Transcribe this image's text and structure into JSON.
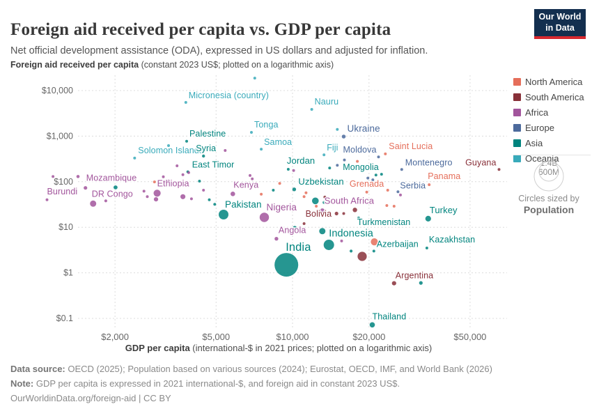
{
  "header": {
    "title": "Foreign aid received per capita vs. GDP per capita",
    "subtitle": "Net official development assistance (ODA), expressed in US dollars and adjusted for inflation.",
    "logo_line1": "Our World",
    "logo_line2": "in Data"
  },
  "axes": {
    "y_title_bold": "Foreign aid received per capita",
    "y_title_rest": " (constant 2023 US$; plotted on a logarithmic axis)",
    "x_title_bold": "GDP per capita",
    "x_title_rest": " (international-$ in 2021 prices; plotted on a logarithmic axis)"
  },
  "legend": {
    "continents": [
      "North America",
      "South America",
      "Africa",
      "Europe",
      "Asia",
      "Oceania"
    ],
    "size_legend": {
      "big_label": "1.4B",
      "small_label": "600M",
      "caption": "Circles sized by",
      "caption_bold": "Population"
    }
  },
  "footer": {
    "line1_bold": "Data source:",
    "line1_rest": " OECD (2025); Population based on various sources (2024); Eurostat, OECD, IMF, and World Bank (2026)",
    "line2_bold": "Note:",
    "line2_rest": " GDP per capita is expressed in 2021 international-$, and foreign aid in constant 2023 US$.",
    "line3": "OurWorldinData.org/foreign-aid | CC BY"
  },
  "chart_data": {
    "type": "scatter",
    "title": "Foreign aid received per capita vs. GDP per capita",
    "xlabel": "GDP per capita (international-$ in 2021 prices; logarithmic)",
    "ylabel": "Foreign aid received per capita (constant 2023 US$; logarithmic)",
    "xlim": [
      1430,
      69900
    ],
    "ylim": [
      0.0633,
      21700
    ],
    "x_ticks": [
      {
        "label": "$2,000",
        "value": 2000
      },
      {
        "label": "$5,000",
        "value": 5000
      },
      {
        "label": "$10,000",
        "value": 10000
      },
      {
        "label": "$20,000",
        "value": 20000
      },
      {
        "label": "$50,000",
        "value": 50000
      }
    ],
    "y_ticks": [
      {
        "label": "$10,000",
        "value": 10000
      },
      {
        "label": "$1,000",
        "value": 1000
      },
      {
        "label": "$100",
        "value": 100
      },
      {
        "label": "$10",
        "value": 10
      },
      {
        "label": "$1",
        "value": 1
      },
      {
        "label": "$0.1",
        "value": 0.1
      }
    ],
    "colors": {
      "North America": "#E56E5A",
      "South America": "#883039",
      "Africa": "#A2559C",
      "Europe": "#4C6A9C",
      "Asia": "#00847E",
      "Oceania": "#38AABA"
    },
    "points": [
      {
        "n": "Micronesia (country)",
        "c": "Oceania",
        "g": 3800,
        "a": 5500,
        "p": 0.12,
        "lb": [
          4,
          -6
        ]
      },
      {
        "n": "Nauru",
        "c": "Oceania",
        "g": 11900,
        "a": 3860,
        "p": 0.013,
        "lb": [
          4,
          -7
        ]
      },
      {
        "n": "Tonga",
        "c": "Oceania",
        "g": 6890,
        "a": 1210,
        "p": 0.11,
        "lb": [
          4,
          -7
        ]
      },
      {
        "n": "Palestine",
        "c": "Asia",
        "g": 3830,
        "a": 770,
        "p": 5.5,
        "lb": [
          4,
          -7
        ]
      },
      {
        "n": "Solomon Islands",
        "c": "Oceania",
        "g": 2390,
        "a": 330,
        "p": 0.8,
        "lb": [
          5,
          -7
        ]
      },
      {
        "n": "Syria",
        "c": "Asia",
        "g": 4460,
        "a": 366,
        "p": 23,
        "lb": [
          -11,
          -7
        ]
      },
      {
        "n": "East Timor",
        "c": "Asia",
        "g": 3870,
        "a": 165,
        "p": 1.4,
        "lb": [
          6,
          -6
        ]
      },
      {
        "n": "Samoa",
        "c": "Oceania",
        "g": 7530,
        "a": 518,
        "p": 0.22,
        "lb": [
          4,
          -6
        ]
      },
      {
        "n": "Ukraine",
        "c": "Europe",
        "g": 15900,
        "a": 980,
        "p": 38,
        "lb": [
          5,
          -7
        ],
        "fs": 13.5
      },
      {
        "n": "Fiji",
        "c": "Oceania",
        "g": 13300,
        "a": 390,
        "p": 0.9,
        "lb": [
          4,
          -6
        ]
      },
      {
        "n": "Moldova",
        "c": "Europe",
        "g": 21800,
        "a": 350,
        "p": 2.5,
        "lb": [
          -3,
          -6
        ],
        "an": "end"
      },
      {
        "n": "Saint Lucia",
        "c": "North America",
        "g": 23200,
        "a": 408,
        "p": 0.18,
        "lb": [
          5,
          -7
        ]
      },
      {
        "n": "Jordan",
        "c": "Asia",
        "g": 9620,
        "a": 187,
        "p": 11,
        "lb": [
          -2,
          -8
        ],
        "fs": 13
      },
      {
        "n": "Montenegro",
        "c": "Europe",
        "g": 26900,
        "a": 185,
        "p": 0.62,
        "lb": [
          5,
          -6
        ]
      },
      {
        "n": "Guyana",
        "c": "South America",
        "g": 65000,
        "a": 185,
        "p": 0.8,
        "lb": [
          -4,
          -6
        ],
        "an": "end"
      },
      {
        "n": "Mongolia",
        "c": "Asia",
        "g": 22400,
        "a": 146,
        "p": 3.4,
        "lb": [
          -4,
          -6
        ],
        "an": "end"
      },
      {
        "n": "Panama",
        "c": "North America",
        "g": 34500,
        "a": 86,
        "p": 4.5,
        "lb": [
          -2,
          -8
        ]
      },
      {
        "n": "Uzbekistan",
        "c": "Asia",
        "g": 10150,
        "a": 68,
        "p": 36,
        "lb": [
          6,
          -7
        ],
        "fs": 13
      },
      {
        "n": "Grenada",
        "c": "North America",
        "g": 19600,
        "a": 59,
        "p": 0.11,
        "lb": [
          0,
          -8
        ],
        "an": "middle"
      },
      {
        "n": "Serbia",
        "c": "Europe",
        "g": 26000,
        "a": 60,
        "p": 6.6,
        "lb": [
          3,
          -5
        ]
      },
      {
        "n": "Burundi",
        "c": "Africa",
        "g": 1080,
        "a": 40,
        "p": 13,
        "lb": [
          0,
          -8
        ]
      },
      {
        "n": "Mozambique",
        "c": "Africa",
        "g": 1530,
        "a": 73,
        "p": 34,
        "lb": [
          1,
          -10
        ]
      },
      {
        "n": "DR Congo",
        "c": "Africa",
        "g": 1640,
        "a": 33,
        "p": 102,
        "lb": [
          -2,
          -10
        ]
      },
      {
        "n": "Ethiopia",
        "c": "Africa",
        "g": 2930,
        "a": 56,
        "p": 126,
        "lb": [
          0,
          -10
        ]
      },
      {
        "n": "Kenya",
        "c": "Africa",
        "g": 5820,
        "a": 54,
        "p": 55,
        "lb": [
          1,
          -9
        ]
      },
      {
        "n": "Pakistan",
        "c": "Asia",
        "g": 5350,
        "a": 19,
        "p": 240,
        "lb": [
          2,
          -10
        ],
        "fs": 13.5
      },
      {
        "n": "Nigeria",
        "c": "Africa",
        "g": 7740,
        "a": 16.5,
        "p": 224,
        "lb": [
          3,
          -10
        ],
        "fs": 13.5
      },
      {
        "n": "Angola",
        "c": "Africa",
        "g": 8640,
        "a": 5.6,
        "p": 36,
        "lb": [
          3,
          -8
        ]
      },
      {
        "n": "India",
        "c": "Asia",
        "g": 9460,
        "a": 1.5,
        "p": 1430,
        "lb": [
          -1,
          -20
        ],
        "fs": 16.5
      },
      {
        "n": "Indonesia",
        "c": "Asia",
        "g": 13900,
        "a": 4.1,
        "p": 277,
        "lb": [
          0,
          -12
        ],
        "fs": 14.5
      },
      {
        "n": "Bolivia",
        "c": "South America",
        "g": 11100,
        "a": 12,
        "p": 12,
        "lb": [
          2,
          -10
        ]
      },
      {
        "n": "South Africa",
        "c": "Africa",
        "g": 13100,
        "a": 23,
        "p": 60,
        "lb": [
          3,
          -10
        ],
        "fs": 13
      },
      {
        "n": "Turkmenistan",
        "c": "Asia",
        "g": 18200,
        "a": 16,
        "p": 6.5,
        "lb": [
          -2,
          10
        ]
      },
      {
        "n": "Turkey",
        "c": "Asia",
        "g": 34200,
        "a": 15.4,
        "p": 85,
        "lb": [
          2,
          -8
        ],
        "fs": 13
      },
      {
        "n": "Azerbaijan",
        "c": "Asia",
        "g": 20900,
        "a": 3,
        "p": 10,
        "lb": [
          4,
          -6
        ]
      },
      {
        "n": "Kazakhstan",
        "c": "Asia",
        "g": 33800,
        "a": 3.5,
        "p": 20,
        "lb": [
          3,
          -8
        ]
      },
      {
        "n": "Argentina",
        "c": "South America",
        "g": 25100,
        "a": 0.59,
        "p": 46,
        "lb": [
          2,
          -7
        ]
      },
      {
        "n": "Thailand",
        "c": "Asia",
        "g": 20600,
        "a": 0.072,
        "p": 72,
        "lb": [
          0,
          -8
        ]
      },
      {
        "c": "Oceania",
        "g": 7100,
        "a": 18800,
        "p": 0.011
      },
      {
        "c": "Oceania",
        "g": 15000,
        "a": 1400,
        "p": 0.04
      },
      {
        "c": "Oceania",
        "g": 3250,
        "a": 620,
        "p": 0.3
      },
      {
        "c": "Africa",
        "g": 5430,
        "a": 485,
        "p": 0.6
      },
      {
        "c": "Africa",
        "g": 3510,
        "a": 223,
        "p": 1.2
      },
      {
        "c": "Asia",
        "g": 14000,
        "a": 200,
        "p": 2.8
      },
      {
        "c": "Europe",
        "g": 15000,
        "a": 230,
        "p": 2.8
      },
      {
        "c": "Europe",
        "g": 16000,
        "a": 300,
        "p": 3.7
      },
      {
        "c": "North America",
        "g": 18000,
        "a": 280,
        "p": 0.07
      },
      {
        "c": "Europe",
        "g": 19800,
        "a": 120,
        "p": 2.7
      },
      {
        "c": "Europe",
        "g": 20700,
        "a": 110,
        "p": 3
      },
      {
        "c": "Asia",
        "g": 21300,
        "a": 140,
        "p": 1
      },
      {
        "c": "North America",
        "g": 11300,
        "a": 57,
        "p": 0.4
      },
      {
        "c": "Asia",
        "g": 12300,
        "a": 38,
        "p": 115
      },
      {
        "c": "Asia",
        "g": 13300,
        "a": 35,
        "p": 7
      },
      {
        "c": "Asia",
        "g": 8400,
        "a": 65,
        "p": 10
      },
      {
        "c": "Africa",
        "g": 10100,
        "a": 176,
        "p": 7
      },
      {
        "c": "North America",
        "g": 11100,
        "a": 47,
        "p": 0.4
      },
      {
        "c": "South America",
        "g": 13400,
        "a": 46,
        "p": 0.6
      },
      {
        "c": "South America",
        "g": 14900,
        "a": 20,
        "p": 34
      },
      {
        "c": "South America",
        "g": 15900,
        "a": 20,
        "p": 18
      },
      {
        "c": "Asia",
        "g": 13100,
        "a": 8.2,
        "p": 100
      },
      {
        "c": "Asia",
        "g": 17000,
        "a": 3,
        "p": 22
      },
      {
        "c": "North America",
        "g": 21000,
        "a": 4.8,
        "p": 128
      },
      {
        "c": "South America",
        "g": 18800,
        "a": 2.3,
        "p": 216
      },
      {
        "c": "Asia",
        "g": 32000,
        "a": 0.6,
        "p": 34
      },
      {
        "c": "North America",
        "g": 23700,
        "a": 65,
        "p": 11
      },
      {
        "c": "Africa",
        "g": 26600,
        "a": 51,
        "p": 1.3
      },
      {
        "c": "North America",
        "g": 23500,
        "a": 30,
        "p": 0.4
      },
      {
        "c": "North America",
        "g": 25100,
        "a": 29,
        "p": 0.3
      },
      {
        "c": "Asia",
        "g": 2010,
        "a": 75,
        "p": 41
      },
      {
        "c": "Africa",
        "g": 1840,
        "a": 38,
        "p": 21
      },
      {
        "c": "Africa",
        "g": 1140,
        "a": 130,
        "p": 6
      },
      {
        "c": "Africa",
        "g": 1430,
        "a": 130,
        "p": 27
      },
      {
        "c": "North America",
        "g": 2860,
        "a": 99,
        "p": 11.7
      },
      {
        "c": "Africa",
        "g": 2600,
        "a": 62,
        "p": 8
      },
      {
        "c": "Africa",
        "g": 2680,
        "a": 47,
        "p": 17
      },
      {
        "c": "Africa",
        "g": 2900,
        "a": 41,
        "p": 48
      },
      {
        "c": "Africa",
        "g": 3100,
        "a": 128,
        "p": 2
      },
      {
        "c": "Africa",
        "g": 3250,
        "a": 103,
        "p": 13
      },
      {
        "c": "Africa",
        "g": 3700,
        "a": 142,
        "p": 6
      },
      {
        "c": "Africa",
        "g": 3900,
        "a": 158,
        "p": 2
      },
      {
        "c": "Africa",
        "g": 3700,
        "a": 47,
        "p": 65
      },
      {
        "c": "Africa",
        "g": 4000,
        "a": 42,
        "p": 17
      },
      {
        "c": "Asia",
        "g": 4300,
        "a": 103,
        "p": 7
      },
      {
        "c": "Africa",
        "g": 4460,
        "a": 65,
        "p": 12
      },
      {
        "c": "Asia",
        "g": 4700,
        "a": 40,
        "p": 8
      },
      {
        "c": "Asia",
        "g": 4940,
        "a": 32,
        "p": 17
      },
      {
        "c": "Africa",
        "g": 6800,
        "a": 137,
        "p": 3
      },
      {
        "c": "Africa",
        "g": 6940,
        "a": 115,
        "p": 2
      },
      {
        "c": "North America",
        "g": 7530,
        "a": 53,
        "p": 7
      },
      {
        "c": "Asia",
        "g": 10200,
        "a": 9.7,
        "p": 38
      },
      {
        "c": "Africa",
        "g": 6450,
        "a": 78,
        "p": 12
      },
      {
        "c": "North America",
        "g": 12400,
        "a": 29,
        "p": 0.4
      },
      {
        "c": "South America",
        "g": 17600,
        "a": 24,
        "p": 52
      },
      {
        "c": "North America",
        "g": 8900,
        "a": 92,
        "p": 6.3
      },
      {
        "c": "Africa",
        "g": 15600,
        "a": 5,
        "p": 2.6
      }
    ]
  }
}
